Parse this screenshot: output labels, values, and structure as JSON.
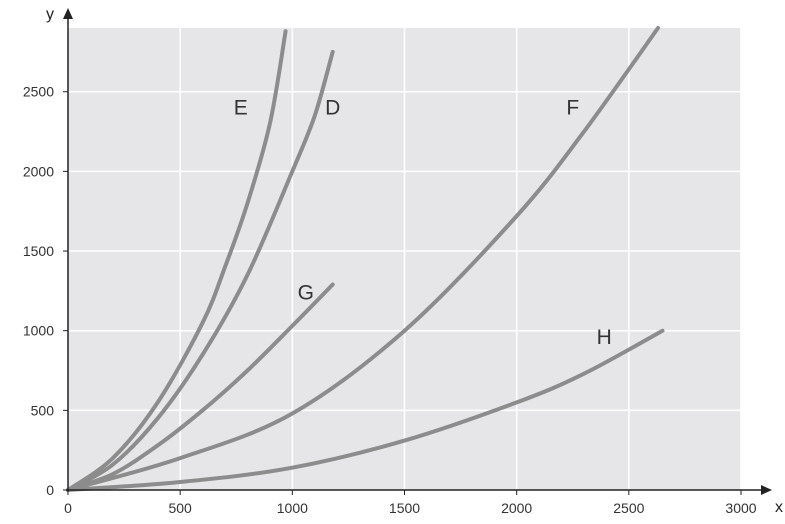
{
  "chart_data": {
    "type": "line",
    "title": "",
    "xlabel": "x",
    "ylabel": "y",
    "xlim": [
      0,
      3000
    ],
    "ylim": [
      0,
      2900
    ],
    "x_ticks": [
      0,
      500,
      1000,
      1500,
      2000,
      2500,
      3000
    ],
    "y_ticks": [
      0,
      500,
      1000,
      1500,
      2000,
      2500
    ],
    "x_tick_labels": [
      "0",
      "500",
      "1000",
      "1500",
      "2000",
      "2500",
      "3000"
    ],
    "y_tick_labels": [
      "0",
      "500",
      "1000",
      "1500",
      "2000",
      "2500"
    ],
    "grid": true,
    "legend": "none",
    "colors": {
      "plot_background": "#e6e6e8",
      "grid": "#ffffff",
      "curve": "#8c8c8c",
      "axis": "#222222"
    },
    "series": [
      {
        "name": "E",
        "points": [
          [
            0,
            0
          ],
          [
            200,
            200
          ],
          [
            400,
            550
          ],
          [
            600,
            1050
          ],
          [
            700,
            1400
          ],
          [
            800,
            1800
          ],
          [
            900,
            2300
          ],
          [
            970,
            2880
          ]
        ]
      },
      {
        "name": "D",
        "points": [
          [
            0,
            0
          ],
          [
            200,
            160
          ],
          [
            400,
            450
          ],
          [
            600,
            850
          ],
          [
            800,
            1350
          ],
          [
            1000,
            2000
          ],
          [
            1100,
            2350
          ],
          [
            1180,
            2750
          ]
        ]
      },
      {
        "name": "G",
        "points": [
          [
            0,
            0
          ],
          [
            200,
            100
          ],
          [
            400,
            280
          ],
          [
            600,
            500
          ],
          [
            800,
            750
          ],
          [
            1000,
            1030
          ],
          [
            1180,
            1290
          ]
        ]
      },
      {
        "name": "F",
        "points": [
          [
            0,
            0
          ],
          [
            500,
            200
          ],
          [
            1000,
            480
          ],
          [
            1500,
            1000
          ],
          [
            2000,
            1720
          ],
          [
            2300,
            2250
          ],
          [
            2630,
            2900
          ]
        ]
      },
      {
        "name": "H",
        "points": [
          [
            0,
            0
          ],
          [
            500,
            50
          ],
          [
            1000,
            140
          ],
          [
            1500,
            310
          ],
          [
            2000,
            550
          ],
          [
            2300,
            730
          ],
          [
            2650,
            1000
          ]
        ]
      }
    ],
    "annotations": [
      {
        "text": "E",
        "x": 770,
        "y": 2400
      },
      {
        "text": "D",
        "x": 1180,
        "y": 2400
      },
      {
        "text": "F",
        "x": 2250,
        "y": 2400
      },
      {
        "text": "G",
        "x": 1060,
        "y": 1240
      },
      {
        "text": "H",
        "x": 2390,
        "y": 960
      }
    ]
  }
}
